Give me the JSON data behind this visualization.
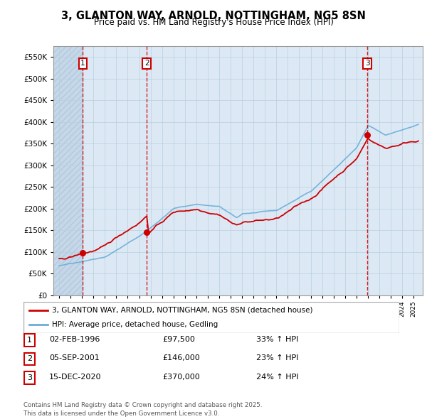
{
  "title": "3, GLANTON WAY, ARNOLD, NOTTINGHAM, NG5 8SN",
  "subtitle": "Price paid vs. HM Land Registry's House Price Index (HPI)",
  "legend_line1": "3, GLANTON WAY, ARNOLD, NOTTINGHAM, NG5 8SN (detached house)",
  "legend_line2": "HPI: Average price, detached house, Gedling",
  "footer": "Contains HM Land Registry data © Crown copyright and database right 2025.\nThis data is licensed under the Open Government Licence v3.0.",
  "transactions": [
    {
      "num": 1,
      "date": "02-FEB-1996",
      "price": 97500,
      "year": 1996.08,
      "pct": "33% ↑ HPI"
    },
    {
      "num": 2,
      "date": "05-SEP-2001",
      "price": 146000,
      "year": 2001.67,
      "pct": "23% ↑ HPI"
    },
    {
      "num": 3,
      "date": "15-DEC-2020",
      "price": 370000,
      "year": 2020.95,
      "pct": "24% ↑ HPI"
    }
  ],
  "hpi_color": "#6baed6",
  "price_color": "#cc0000",
  "ylim": [
    0,
    575000
  ],
  "xlim_start": 1993.5,
  "xlim_end": 2025.8,
  "bg_color": "#dce9f5",
  "hatch_color": "#c5d8ea"
}
